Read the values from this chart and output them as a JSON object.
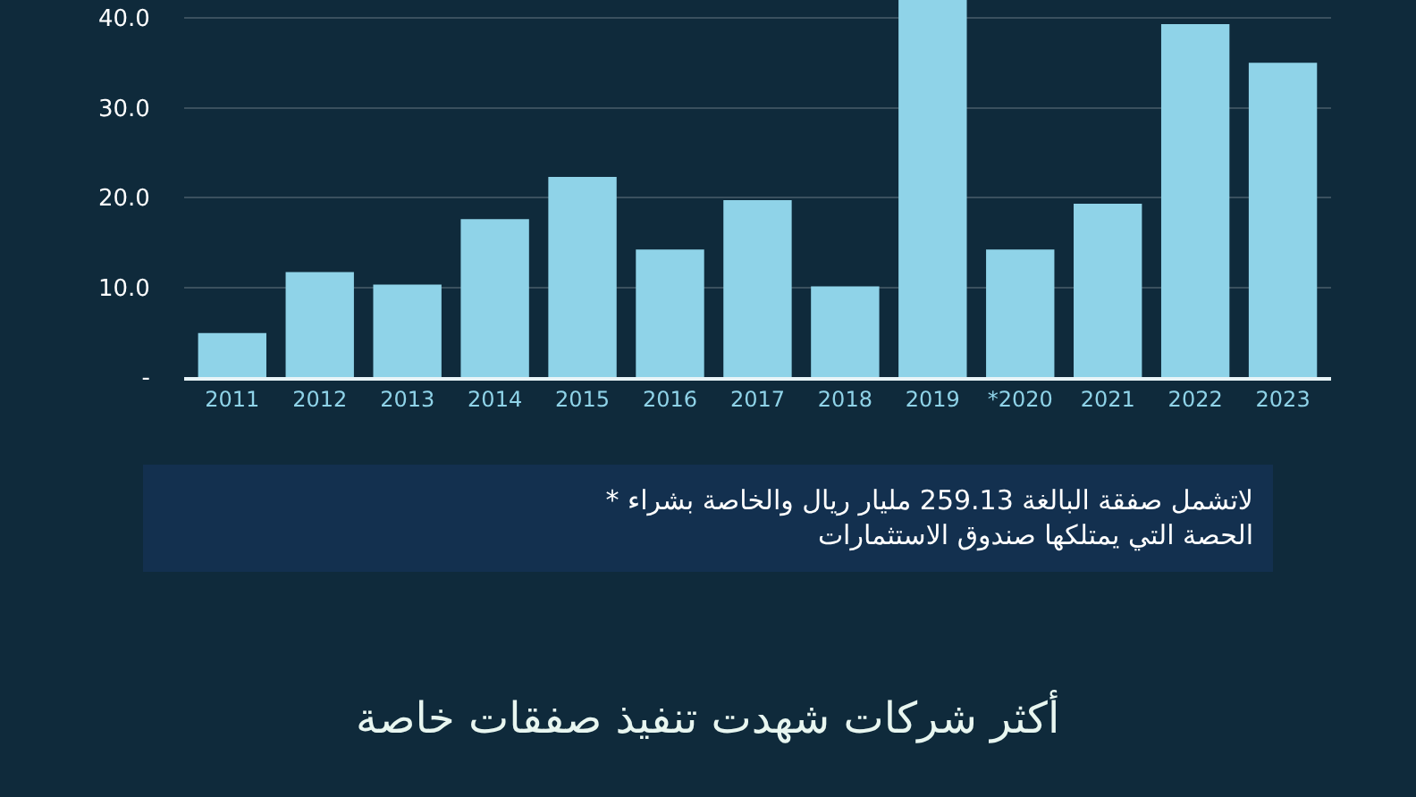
{
  "chart_data": {
    "type": "bar",
    "title": "أكثر شركات شهدت تنفيذ صفقات خاصة",
    "categories": [
      "2011",
      "2012",
      "2013",
      "2014",
      "2015",
      "2016",
      "2017",
      "2018",
      "2019",
      "*2020",
      "2021",
      "2022",
      "2023"
    ],
    "values": [
      4.9,
      11.7,
      10.3,
      17.6,
      22.3,
      14.2,
      19.7,
      10.1,
      42.0,
      14.2,
      19.3,
      39.3,
      35.0
    ],
    "color": "#8fd3e8",
    "ylim": [
      0,
      42
    ],
    "yticks": [
      {
        "value": 0,
        "label": "-"
      },
      {
        "value": 10,
        "label": "10.0"
      },
      {
        "value": 20,
        "label": "20.0"
      },
      {
        "value": 30,
        "label": "30.0"
      },
      {
        "value": 40,
        "label": "40.0"
      }
    ],
    "grid": "y",
    "annotations": [
      "* لاتشمل صفقة البالغة 259.13 مليار ريال والخاصة بشراء\nالحصة التي يمتلكها صندوق الاستثمارات"
    ]
  }
}
